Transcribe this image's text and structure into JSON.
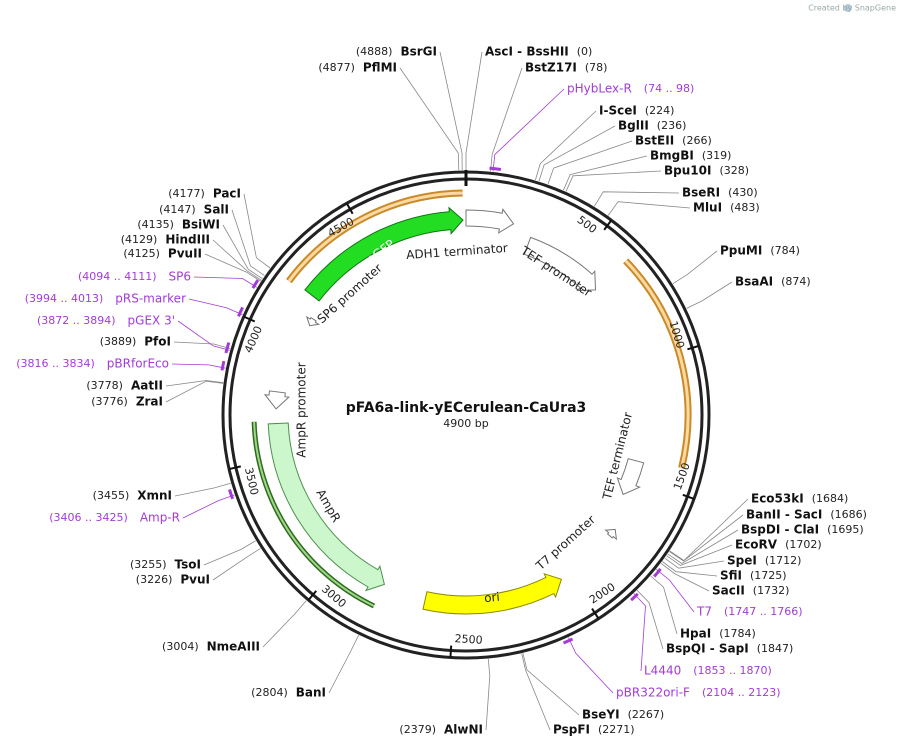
{
  "credit": "Created by SnapGene",
  "map": {
    "name": "pFA6a-link-yECerulean-CaUra3",
    "size": {
      "value": 4900,
      "label": "4900 bp"
    },
    "ticks": [
      500,
      1000,
      1500,
      2000,
      2500,
      3000,
      3500,
      4000,
      4500
    ],
    "features": [
      "yeGFP",
      "ADH1 terminator",
      "TEF promoter",
      "TEF terminator",
      "T7 promoter",
      "ori",
      "AmpR",
      "AmpR promoter",
      "SP6 promoter"
    ],
    "sites": [
      {
        "name": "BsrGI",
        "position": {
          "value": 4888,
          "label": "(4888)"
        }
      },
      {
        "name": "PflMI",
        "position": {
          "value": 4877,
          "label": "(4877)"
        }
      },
      {
        "name": "AscI - BssHII",
        "position": {
          "value": 0,
          "label": "(0)"
        }
      },
      {
        "name": "BstZ17I",
        "position": {
          "value": 78,
          "label": "(78)"
        }
      },
      {
        "name": "I-SceI",
        "position": {
          "value": 224,
          "label": "(224)"
        }
      },
      {
        "name": "BglII",
        "position": {
          "value": 236,
          "label": "(236)"
        }
      },
      {
        "name": "BstEII",
        "position": {
          "value": 266,
          "label": "(266)"
        }
      },
      {
        "name": "BmgBI",
        "position": {
          "value": 319,
          "label": "(319)"
        }
      },
      {
        "name": "Bpu10I",
        "position": {
          "value": 328,
          "label": "(328)"
        }
      },
      {
        "name": "BseRI",
        "position": {
          "value": 430,
          "label": "(430)"
        }
      },
      {
        "name": "MluI",
        "position": {
          "value": 483,
          "label": "(483)"
        }
      },
      {
        "name": "PpuMI",
        "position": {
          "value": 784,
          "label": "(784)"
        }
      },
      {
        "name": "BsaAI",
        "position": {
          "value": 874,
          "label": "(874)"
        }
      },
      {
        "name": "Eco53kI",
        "position": {
          "value": 1684,
          "label": "(1684)"
        }
      },
      {
        "name": "BanII - SacI",
        "position": {
          "value": 1686,
          "label": "(1686)"
        }
      },
      {
        "name": "BspDI - ClaI",
        "position": {
          "value": 1695,
          "label": "(1695)"
        }
      },
      {
        "name": "EcoRV",
        "position": {
          "value": 1702,
          "label": "(1702)"
        }
      },
      {
        "name": "SpeI",
        "position": {
          "value": 1712,
          "label": "(1712)"
        }
      },
      {
        "name": "SfiI",
        "position": {
          "value": 1725,
          "label": "(1725)"
        }
      },
      {
        "name": "SacII",
        "position": {
          "value": 1732,
          "label": "(1732)"
        }
      },
      {
        "name": "HpaI",
        "position": {
          "value": 1784,
          "label": "(1784)"
        }
      },
      {
        "name": "BspQI - SapI",
        "position": {
          "value": 1847,
          "label": "(1847)"
        }
      },
      {
        "name": "BseYI",
        "position": {
          "value": 2267,
          "label": "(2267)"
        }
      },
      {
        "name": "PspFI",
        "position": {
          "value": 2271,
          "label": "(2271)"
        }
      },
      {
        "name": "AlwNI",
        "position": {
          "value": 2379,
          "label": "(2379)"
        }
      },
      {
        "name": "BanI",
        "position": {
          "value": 2804,
          "label": "(2804)"
        }
      },
      {
        "name": "NmeAIII",
        "position": {
          "value": 3004,
          "label": "(3004)"
        }
      },
      {
        "name": "PvuI",
        "position": {
          "value": 3226,
          "label": "(3226)"
        }
      },
      {
        "name": "TsoI",
        "position": {
          "value": 3255,
          "label": "(3255)"
        }
      },
      {
        "name": "XmnI",
        "position": {
          "value": 3455,
          "label": "(3455)"
        }
      },
      {
        "name": "ZraI",
        "position": {
          "value": 3776,
          "label": "(3776)"
        }
      },
      {
        "name": "AatII",
        "position": {
          "value": 3778,
          "label": "(3778)"
        }
      },
      {
        "name": "PfoI",
        "position": {
          "value": 3889,
          "label": "(3889)"
        }
      },
      {
        "name": "PvuII",
        "position": {
          "value": 4125,
          "label": "(4125)"
        }
      },
      {
        "name": "HindIII",
        "position": {
          "value": 4129,
          "label": "(4129)"
        }
      },
      {
        "name": "BsiWI",
        "position": {
          "value": 4135,
          "label": "(4135)"
        }
      },
      {
        "name": "SalI",
        "position": {
          "value": 4147,
          "label": "(4147)"
        }
      },
      {
        "name": "PacI",
        "position": {
          "value": 4177,
          "label": "(4177)"
        }
      }
    ],
    "primers": [
      {
        "name": "pHybLex-R",
        "range": {
          "value": [
            74,
            98
          ],
          "label": "(74 .. 98)"
        }
      },
      {
        "name": "T7",
        "range": {
          "value": [
            1747,
            1766
          ],
          "label": "(1747 .. 1766)"
        }
      },
      {
        "name": "L4440",
        "range": {
          "value": [
            1853,
            1870
          ],
          "label": "(1853 .. 1870)"
        }
      },
      {
        "name": "pBR322ori-F",
        "range": {
          "value": [
            2104,
            2123
          ],
          "label": "(2104 .. 2123)"
        }
      },
      {
        "name": "Amp-R",
        "range": {
          "value": [
            3406,
            3425
          ],
          "label": "(3406 .. 3425)"
        }
      },
      {
        "name": "pBRforEco",
        "range": {
          "value": [
            3816,
            3834
          ],
          "label": "(3816 .. 3834)"
        }
      },
      {
        "name": "pGEX 3'",
        "range": {
          "value": [
            3872,
            3894
          ],
          "label": "(3872 .. 3894)"
        }
      },
      {
        "name": "pRS-marker",
        "range": {
          "value": [
            3994,
            4013
          ],
          "label": "(3994 .. 4013)"
        }
      },
      {
        "name": "SP6",
        "range": {
          "value": [
            4094,
            4111
          ],
          "label": "(4094 .. 4111)"
        }
      }
    ]
  }
}
